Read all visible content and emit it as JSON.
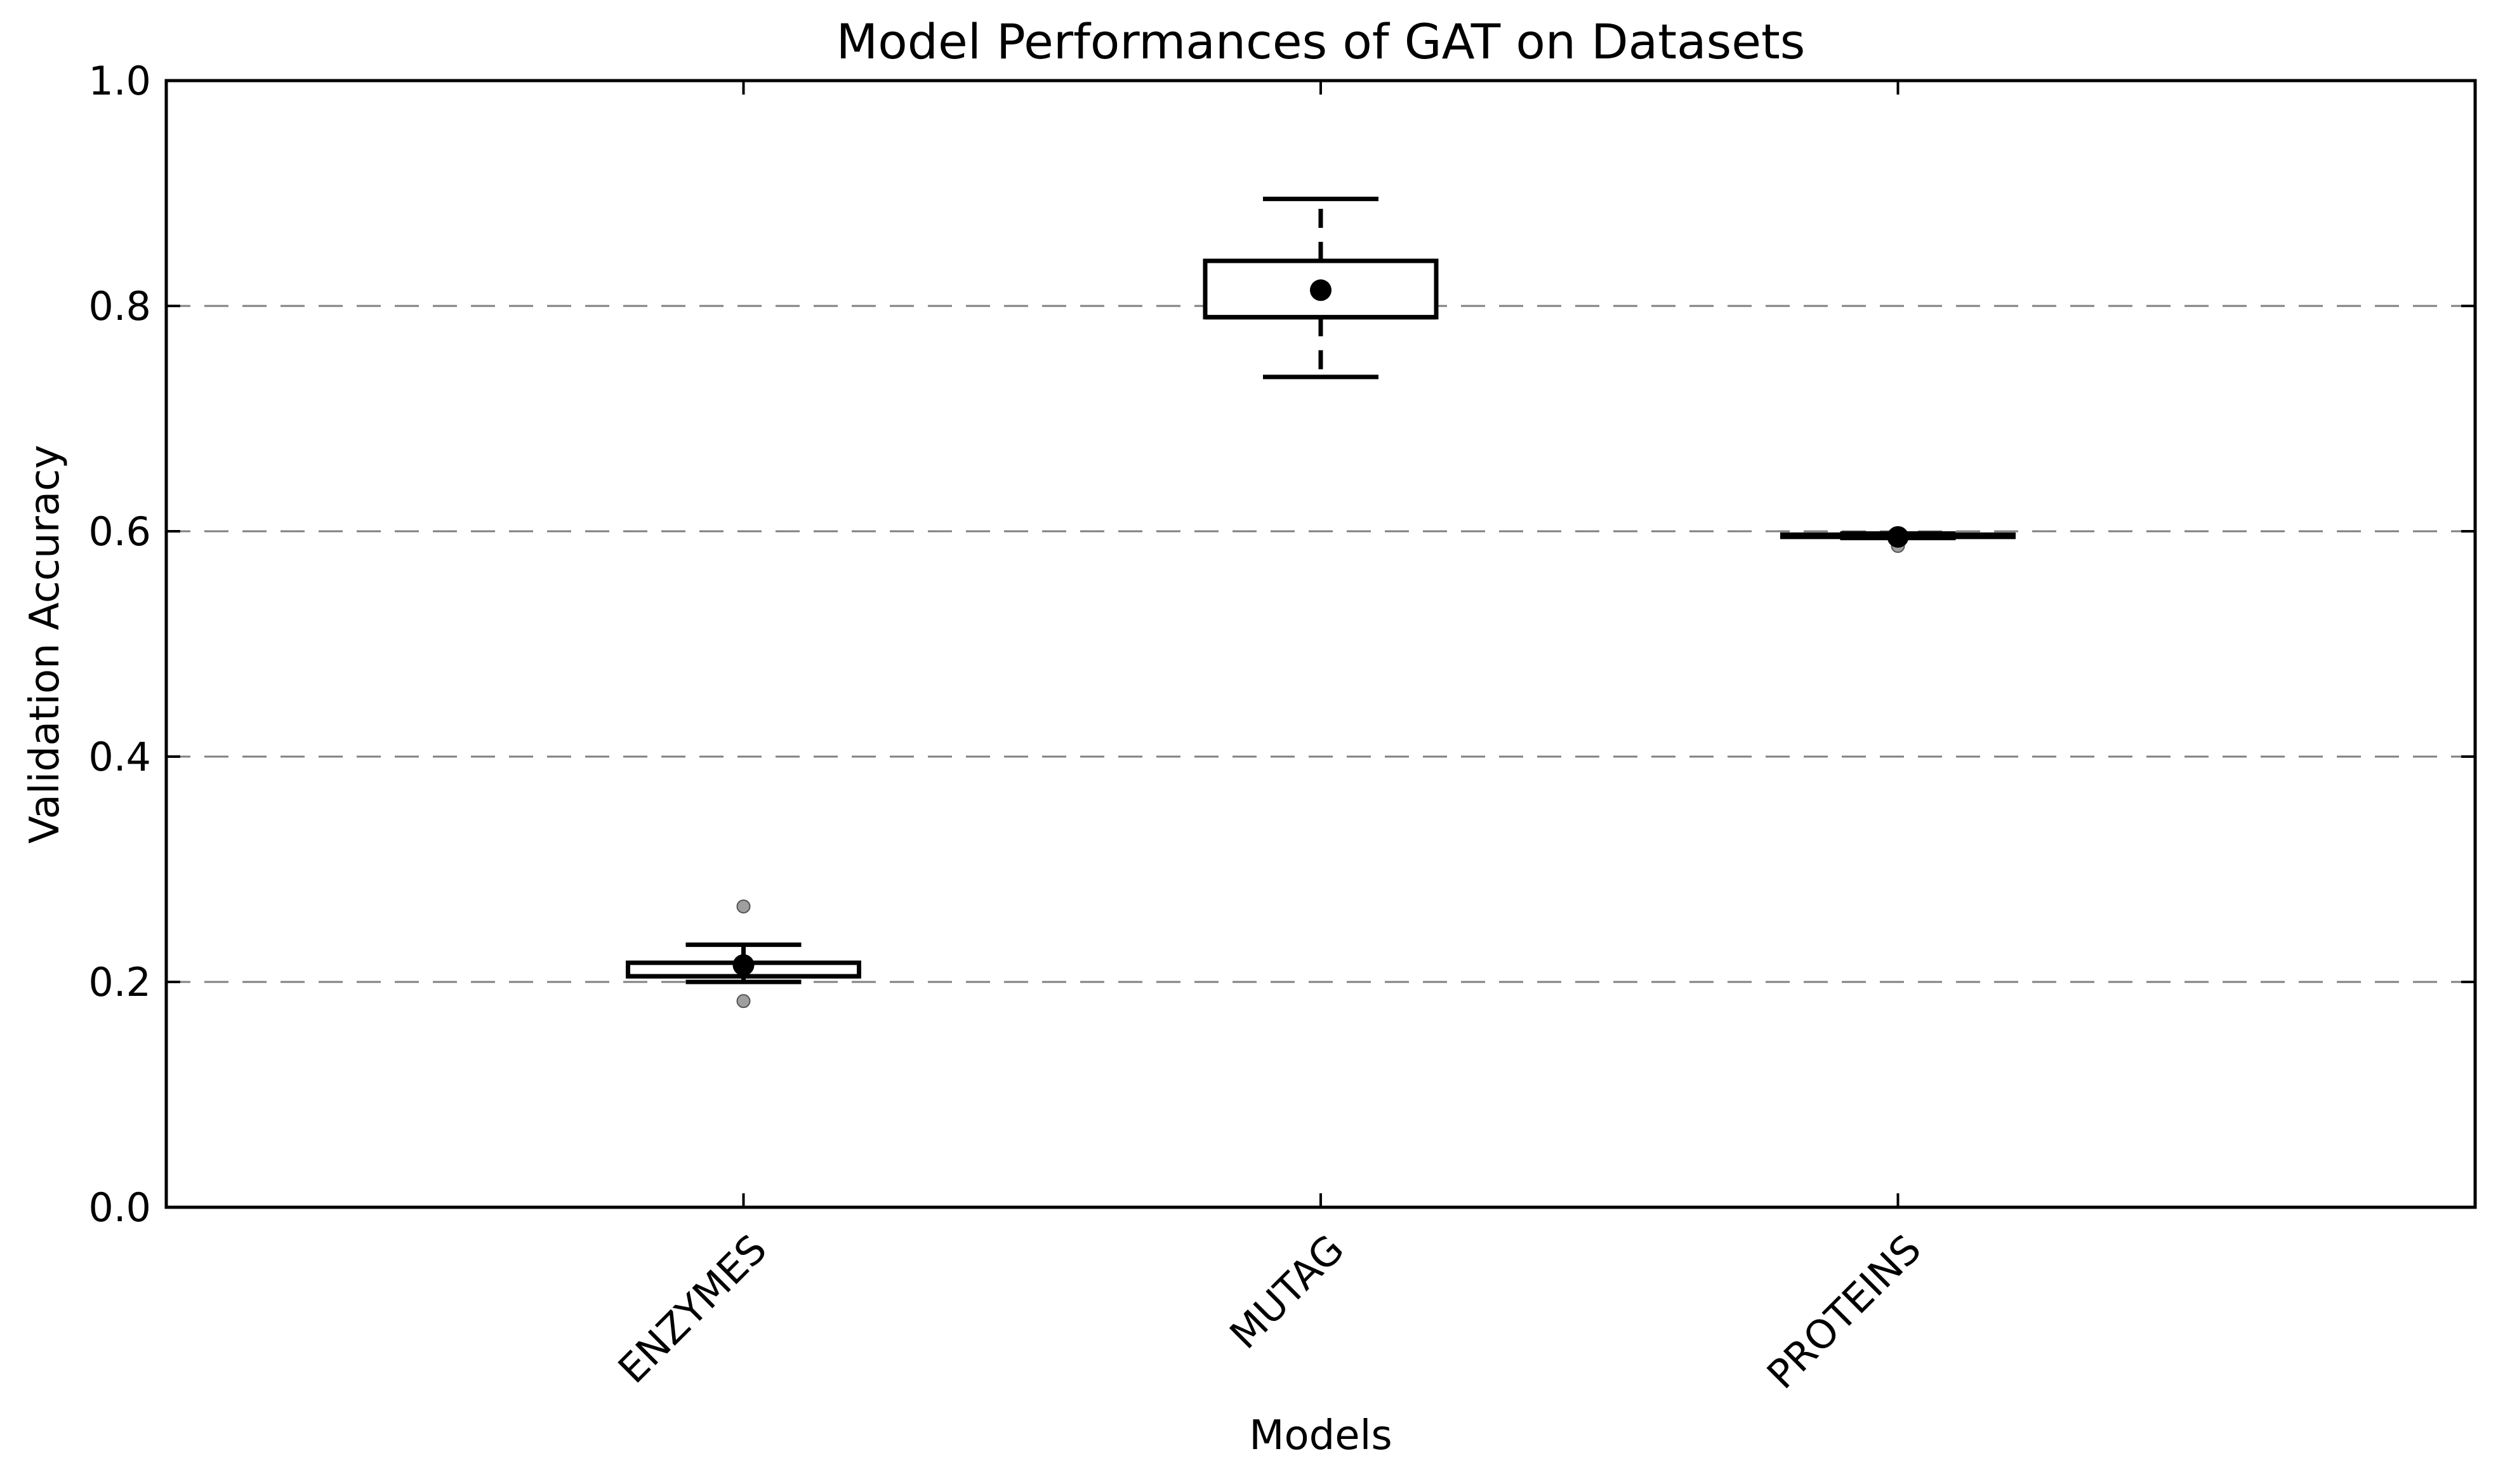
{
  "chart_data": {
    "type": "box",
    "title": "Model Performances of GAT on Datasets",
    "xlabel": "Models",
    "ylabel": "Validation Accuracy",
    "ylim": [
      0,
      1
    ],
    "yticks": [
      "0.0",
      "0.2",
      "0.4",
      "0.6",
      "0.8",
      "1.0"
    ],
    "grid": "horizontal-dashed",
    "categories": [
      "ENZYMES",
      "MUTAG",
      "PROTEINS"
    ],
    "boxes": [
      {
        "name": "ENZYMES",
        "whisker_low": 0.2,
        "q1": 0.205,
        "median": 0.205,
        "q3": 0.217,
        "whisker_high": 0.233,
        "mean": 0.215,
        "outliers": [
          0.267,
          0.183
        ]
      },
      {
        "name": "MUTAG",
        "whisker_low": 0.737,
        "q1": 0.79,
        "median": 0.79,
        "q3": 0.84,
        "whisker_high": 0.895,
        "mean": 0.814,
        "outliers": []
      },
      {
        "name": "PROTEINS",
        "whisker_low": 0.594,
        "q1": 0.595,
        "median": 0.596,
        "q3": 0.597,
        "whisker_high": 0.598,
        "mean": 0.595,
        "outliers": [
          0.587
        ]
      }
    ],
    "colors": {
      "box": "#000000",
      "grid": "#808080",
      "outlier": "#7f7f7f",
      "mean": "#000000"
    }
  }
}
